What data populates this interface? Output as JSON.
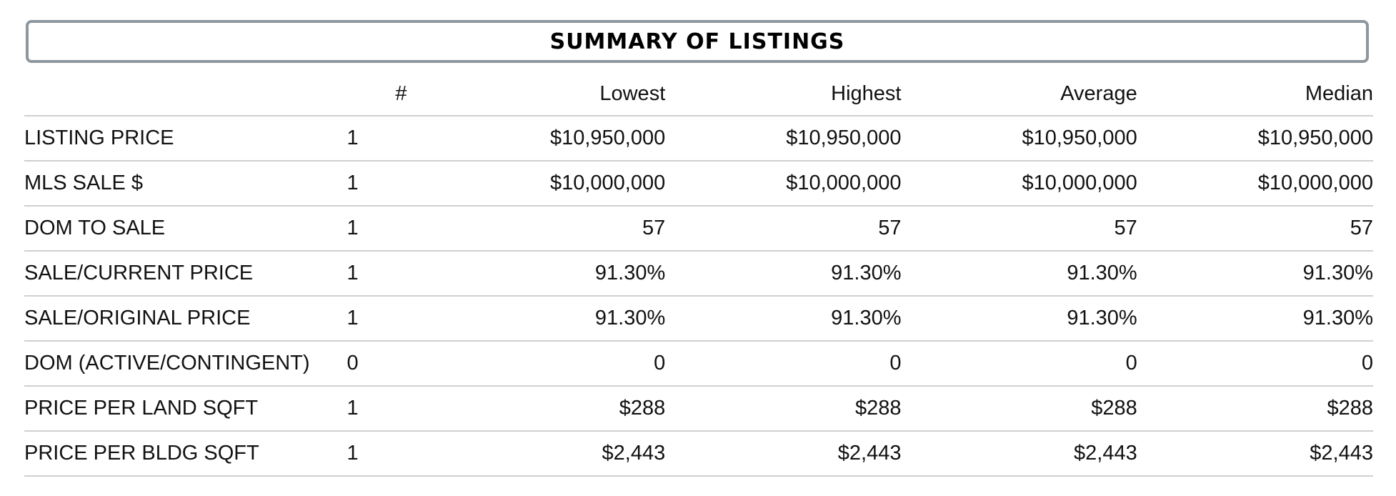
{
  "title": "SUMMARY OF LISTINGS",
  "header": {
    "label": "",
    "count": "#",
    "lowest": "Lowest",
    "highest": "Highest",
    "average": "Average",
    "median": "Median"
  },
  "rows": [
    {
      "label": "LISTING PRICE",
      "count": "1",
      "lowest": "$10,950,000",
      "highest": "$10,950,000",
      "average": "$10,950,000",
      "median": "$10,950,000"
    },
    {
      "label": "MLS SALE $",
      "count": "1",
      "lowest": "$10,000,000",
      "highest": "$10,000,000",
      "average": "$10,000,000",
      "median": "$10,000,000"
    },
    {
      "label": "DOM TO SALE",
      "count": "1",
      "lowest": "57",
      "highest": "57",
      "average": "57",
      "median": "57"
    },
    {
      "label": "SALE/CURRENT PRICE",
      "count": "1",
      "lowest": "91.30%",
      "highest": "91.30%",
      "average": "91.30%",
      "median": "91.30%"
    },
    {
      "label": "SALE/ORIGINAL PRICE",
      "count": "1",
      "lowest": "91.30%",
      "highest": "91.30%",
      "average": "91.30%",
      "median": "91.30%"
    },
    {
      "label": "DOM (ACTIVE/CONTINGENT)",
      "count": "0",
      "lowest": "0",
      "highest": "0",
      "average": "0",
      "median": "0"
    },
    {
      "label": "PRICE PER LAND SQFT",
      "count": "1",
      "lowest": "$288",
      "highest": "$288",
      "average": "$288",
      "median": "$288"
    },
    {
      "label": "PRICE PER BLDG SQFT",
      "count": "1",
      "lowest": "$2,443",
      "highest": "$2,443",
      "average": "$2,443",
      "median": "$2,443"
    }
  ],
  "colors": {
    "title_border": "#8e979e",
    "row_divider": "#cfcfcf",
    "text": "#111111"
  }
}
